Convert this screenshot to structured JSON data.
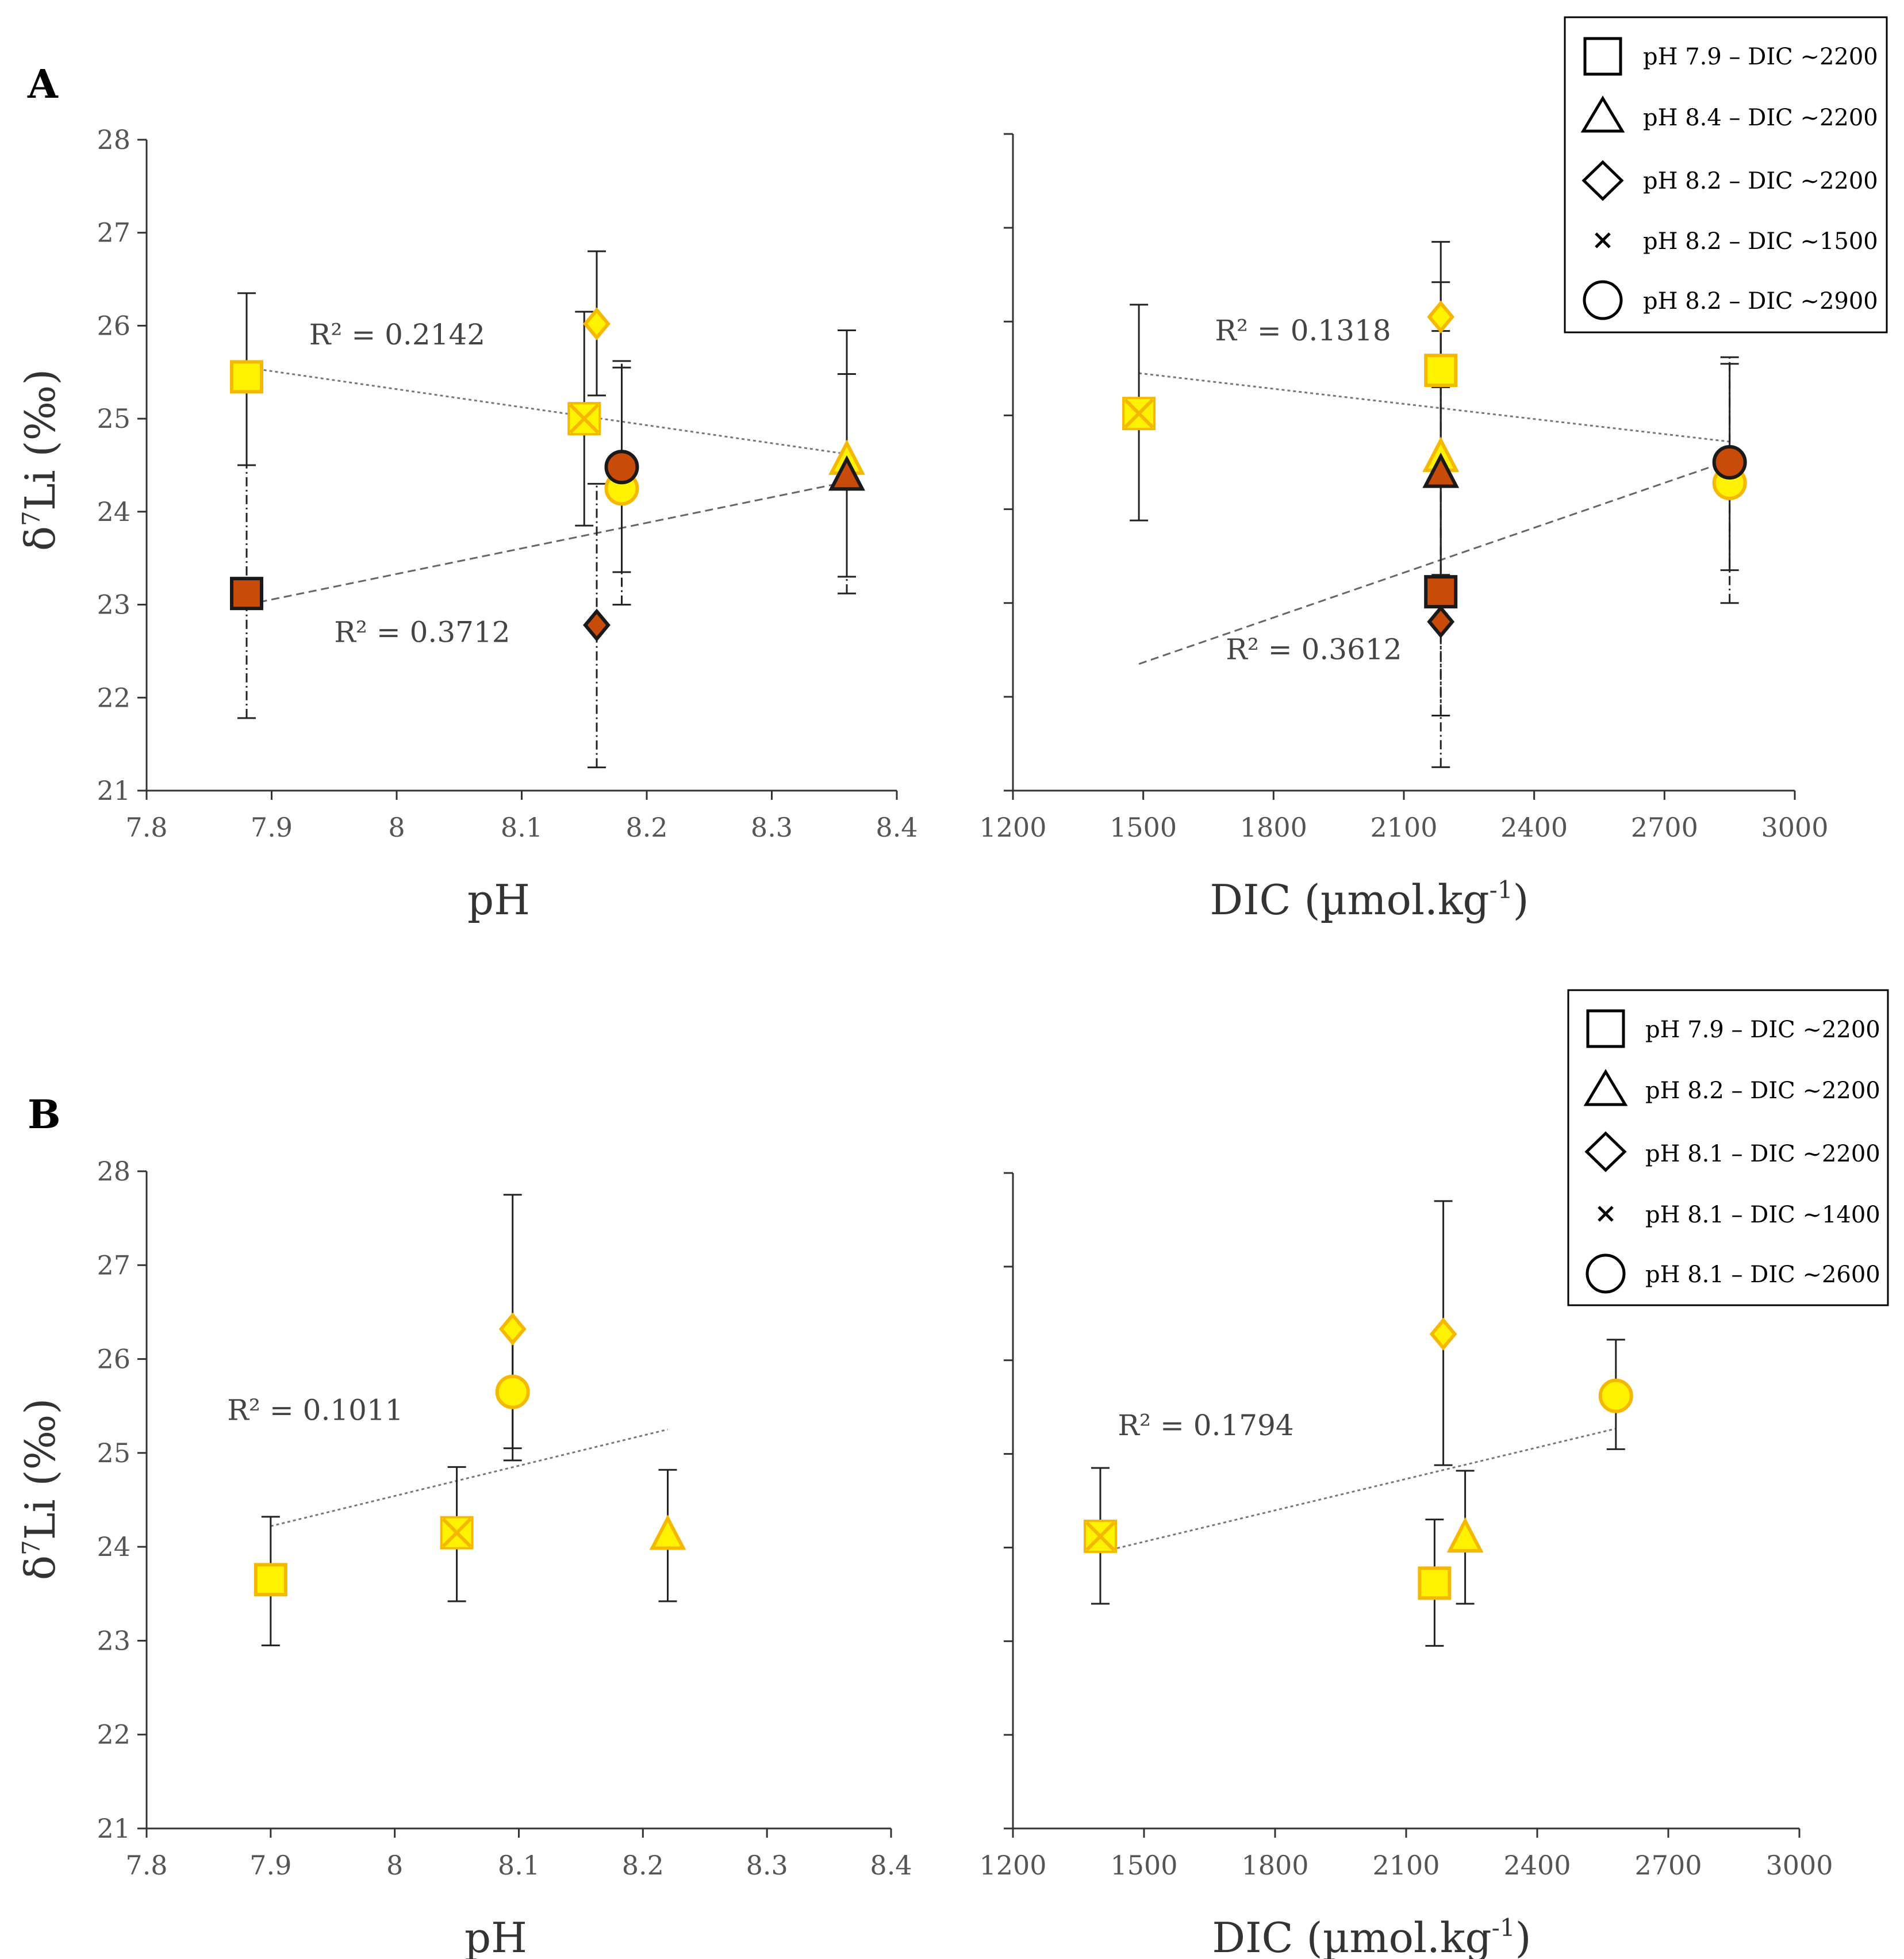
{
  "panels": [
    {
      "label": "A",
      "legend": [
        {
          "marker": "square",
          "text": "pH 7.9 – DIC ~2200"
        },
        {
          "marker": "triangle",
          "text": "pH 8.4 – DIC ~2200"
        },
        {
          "marker": "diamond",
          "text": "pH 8.2 – DIC ~2200"
        },
        {
          "marker": "x",
          "text": "pH 8.2 – DIC ~1500"
        },
        {
          "marker": "circle",
          "text": "pH 8.2 – DIC ~2900"
        }
      ]
    },
    {
      "label": "B",
      "legend": [
        {
          "marker": "square",
          "text": "pH 7.9 – DIC ~2200"
        },
        {
          "marker": "triangle",
          "text": "pH 8.2 – DIC ~2200"
        },
        {
          "marker": "diamond",
          "text": "pH 8.1 – DIC ~2200"
        },
        {
          "marker": "x",
          "text": "pH 8.1 – DIC ~1400"
        },
        {
          "marker": "circle",
          "text": "pH 8.1 – DIC ~2600"
        }
      ]
    }
  ],
  "colors": {
    "yellow_fill": "#FFF200",
    "yellow_edge": "#F5B800",
    "brown_fill": "#C84B0A",
    "dark_edge": "#1a1a1a",
    "axis": "#333333"
  },
  "chart_data": [
    {
      "id": "A-pH",
      "type": "scatter",
      "xlabel": "pH",
      "ylabel": "δ7Li (‰)",
      "xlim": [
        7.8,
        8.4
      ],
      "ylim": [
        21,
        28
      ],
      "xticks": [
        "7.8",
        "7.9",
        "8",
        "8.1",
        "8.2",
        "8.3",
        "8.4"
      ],
      "yticks": [
        "21",
        "22",
        "23",
        "24",
        "25",
        "26",
        "27",
        "28"
      ],
      "series": [
        {
          "name": "yellow",
          "points": [
            {
              "marker": "square",
              "x": 7.88,
              "y": 25.45,
              "lo": 24.5,
              "hi": 26.35
            },
            {
              "marker": "x",
              "x": 8.15,
              "y": 25.0,
              "lo": 23.85,
              "hi": 26.15
            },
            {
              "marker": "diamond",
              "x": 8.16,
              "y": 26.02,
              "lo": 25.25,
              "hi": 26.8
            },
            {
              "marker": "circle",
              "x": 8.18,
              "y": 24.25,
              "lo": 23.35,
              "hi": 25.55
            },
            {
              "marker": "triangle",
              "x": 8.36,
              "y": 24.55,
              "lo": 23.3,
              "hi": 25.95
            }
          ]
        },
        {
          "name": "brown",
          "points": [
            {
              "marker": "square",
              "x": 7.88,
              "y": 23.12,
              "lo": 21.78,
              "hi": 24.5
            },
            {
              "marker": "diamond",
              "x": 8.16,
              "y": 22.78,
              "lo": 21.25,
              "hi": 24.3
            },
            {
              "marker": "circle",
              "x": 8.18,
              "y": 24.48,
              "lo": 23.0,
              "hi": 25.62
            },
            {
              "marker": "triangle",
              "x": 8.36,
              "y": 24.38,
              "lo": 23.12,
              "hi": 25.48
            }
          ]
        }
      ],
      "trendlines": [
        {
          "series": "yellow",
          "x": [
            7.88,
            8.36
          ],
          "y": [
            25.55,
            24.62
          ],
          "label": "R² = 0.2142",
          "label_at": [
            7.93,
            25.8
          ]
        },
        {
          "series": "brown",
          "x": [
            7.88,
            8.36
          ],
          "y": [
            23.0,
            24.32
          ],
          "label": "R² = 0.3712",
          "label_at": [
            7.95,
            22.6
          ]
        }
      ]
    },
    {
      "id": "A-DIC",
      "type": "scatter",
      "xlabel": "DIC (µmol.kg-1)",
      "ylabel": "",
      "xlim": [
        1200,
        3000
      ],
      "ylim": [
        21,
        28
      ],
      "xticks": [
        "1200",
        "1500",
        "1800",
        "2100",
        "2400",
        "2700",
        "3000"
      ],
      "series": [
        {
          "name": "yellow",
          "points": [
            {
              "marker": "x",
              "x": 1490,
              "y": 25.02,
              "lo": 23.88,
              "hi": 26.18
            },
            {
              "marker": "diamond",
              "x": 2185,
              "y": 26.05,
              "lo": 25.3,
              "hi": 26.85
            },
            {
              "marker": "square",
              "x": 2185,
              "y": 25.48,
              "lo": 24.5,
              "hi": 26.42
            },
            {
              "marker": "triangle",
              "x": 2185,
              "y": 24.55,
              "lo": 23.3,
              "hi": 25.9
            },
            {
              "marker": "circle",
              "x": 2850,
              "y": 24.28,
              "lo": 23.35,
              "hi": 25.55
            }
          ]
        },
        {
          "name": "brown",
          "points": [
            {
              "marker": "triangle",
              "x": 2185,
              "y": 24.38,
              "lo": 23.12,
              "hi": 25.48
            },
            {
              "marker": "square",
              "x": 2185,
              "y": 23.12,
              "lo": 21.8,
              "hi": 24.45
            },
            {
              "marker": "diamond",
              "x": 2185,
              "y": 22.8,
              "lo": 21.25,
              "hi": 24.35
            },
            {
              "marker": "circle",
              "x": 2850,
              "y": 24.5,
              "lo": 23.0,
              "hi": 25.62
            }
          ]
        }
      ],
      "trendlines": [
        {
          "series": "yellow",
          "x": [
            1490,
            2850
          ],
          "y": [
            25.45,
            24.72
          ],
          "label": "R² = 0.1318",
          "label_at": [
            1665,
            25.8
          ]
        },
        {
          "series": "brown",
          "x": [
            1490,
            2850
          ],
          "y": [
            22.35,
            24.52
          ],
          "label": "R² = 0.3612",
          "label_at": [
            1690,
            22.4
          ]
        }
      ]
    },
    {
      "id": "B-pH",
      "type": "scatter",
      "xlabel": "pH",
      "ylabel": "δ7Li (‰)",
      "xlim": [
        7.8,
        8.4
      ],
      "ylim": [
        21,
        28
      ],
      "xticks": [
        "7.8",
        "7.9",
        "8",
        "8.1",
        "8.2",
        "8.3",
        "8.4"
      ],
      "yticks": [
        "21",
        "22",
        "23",
        "24",
        "25",
        "26",
        "27",
        "28"
      ],
      "series": [
        {
          "name": "yellow",
          "points": [
            {
              "marker": "square",
              "x": 7.9,
              "y": 23.65,
              "lo": 22.95,
              "hi": 24.32
            },
            {
              "marker": "x",
              "x": 8.05,
              "y": 24.15,
              "lo": 23.42,
              "hi": 24.85
            },
            {
              "marker": "diamond",
              "x": 8.095,
              "y": 26.32,
              "lo": 24.92,
              "hi": 27.75
            },
            {
              "marker": "circle",
              "x": 8.095,
              "y": 25.65,
              "lo": 25.05,
              "hi": 26.3
            },
            {
              "marker": "triangle",
              "x": 8.22,
              "y": 24.12,
              "lo": 23.42,
              "hi": 24.82
            }
          ]
        }
      ],
      "trendlines": [
        {
          "series": "yellow",
          "x": [
            7.9,
            8.22
          ],
          "y": [
            24.22,
            25.25
          ],
          "label": "R² = 0.1011",
          "label_at": [
            7.865,
            25.35
          ]
        }
      ]
    },
    {
      "id": "B-DIC",
      "type": "scatter",
      "xlabel": "DIC (µmol.kg-1)",
      "ylabel": "",
      "xlim": [
        1200,
        3000
      ],
      "ylim": [
        21,
        28
      ],
      "xticks": [
        "1200",
        "1500",
        "1800",
        "2100",
        "2400",
        "2700",
        "3000"
      ],
      "series": [
        {
          "name": "yellow",
          "points": [
            {
              "marker": "x",
              "x": 1400,
              "y": 24.12,
              "lo": 23.4,
              "hi": 24.85
            },
            {
              "marker": "diamond",
              "x": 2185,
              "y": 26.28,
              "lo": 24.88,
              "hi": 27.7
            },
            {
              "marker": "square",
              "x": 2165,
              "y": 23.62,
              "lo": 22.95,
              "hi": 24.3
            },
            {
              "marker": "triangle",
              "x": 2235,
              "y": 24.1,
              "lo": 23.4,
              "hi": 24.82
            },
            {
              "marker": "circle",
              "x": 2580,
              "y": 25.62,
              "lo": 25.05,
              "hi": 26.22
            }
          ]
        }
      ],
      "trendlines": [
        {
          "series": "yellow",
          "x": [
            1400,
            2580
          ],
          "y": [
            23.95,
            25.27
          ],
          "label": "R² = 0.1794",
          "label_at": [
            1440,
            25.2
          ]
        }
      ]
    }
  ]
}
